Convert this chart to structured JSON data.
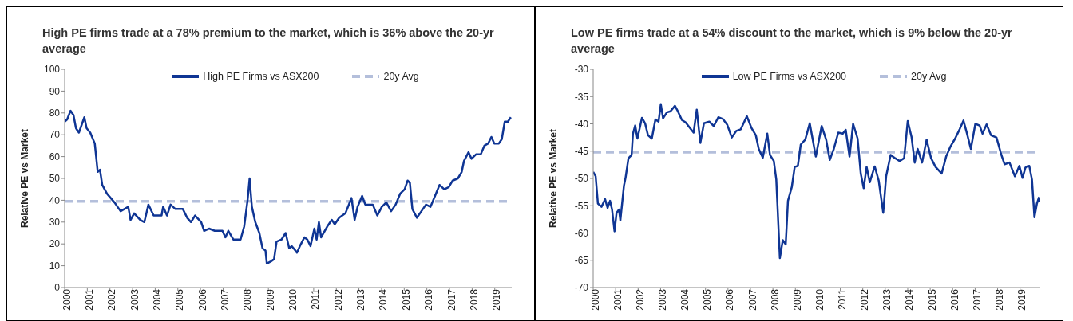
{
  "chart_data": [
    {
      "type": "line",
      "title": "High PE firms trade at a 78% premium to the market, which is 36% above the 20-yr average",
      "ylabel": "Relative PE vs Market",
      "xlim": [
        2000,
        2019.75
      ],
      "xticks": [
        2000,
        2001,
        2002,
        2003,
        2004,
        2005,
        2006,
        2007,
        2008,
        2009,
        2010,
        2011,
        2012,
        2013,
        2014,
        2015,
        2016,
        2017,
        2018,
        2019
      ],
      "ylim": [
        0,
        100
      ],
      "yticks": [
        0,
        10,
        20,
        30,
        40,
        50,
        60,
        70,
        80,
        90,
        100
      ],
      "grid": false,
      "legend": "top",
      "marker": "none",
      "line_style": "solid",
      "x": [
        2000,
        2000.11,
        2000.26,
        2000.39,
        2000.5,
        2000.63,
        2000.87,
        2000.97,
        2001.13,
        2001.33,
        2001.46,
        2001.56,
        2001.66,
        2001.87,
        2002.2,
        2002.47,
        2002.81,
        2002.91,
        2003.07,
        2003.34,
        2003.52,
        2003.7,
        2003.93,
        2004.28,
        2004.35,
        2004.52,
        2004.68,
        2004.89,
        2005.22,
        2005.41,
        2005.58,
        2005.76,
        2006.03,
        2006.16,
        2006.38,
        2006.63,
        2006.97,
        2007.1,
        2007.23,
        2007.45,
        2007.77,
        2007.93,
        2008.08,
        2008.17,
        2008.27,
        2008.42,
        2008.6,
        2008.74,
        2008.87,
        2008.93,
        2009.11,
        2009.25,
        2009.36,
        2009.58,
        2009.76,
        2009.92,
        2010.03,
        2010.19,
        2010.26,
        2010.39,
        2010.59,
        2010.72,
        2010.86,
        2011.03,
        2011.13,
        2011.23,
        2011.33,
        2011.6,
        2011.8,
        2011.93,
        2012.13,
        2012.4,
        2012.67,
        2012.81,
        2012.94,
        2013.14,
        2013.28,
        2013.61,
        2013.81,
        2014.01,
        2014.21,
        2014.42,
        2014.62,
        2014.82,
        2015.02,
        2015.15,
        2015.25,
        2015.36,
        2015.56,
        2015.76,
        2015.96,
        2016.16,
        2016.36,
        2016.56,
        2016.77,
        2016.97,
        2017.14,
        2017.37,
        2017.54,
        2017.64,
        2017.84,
        2017.97,
        2018.17,
        2018.38,
        2018.54,
        2018.71,
        2018.85,
        2018.98,
        2019.18,
        2019.31,
        2019.44,
        2019.58,
        2019.71
      ],
      "series": [
        {
          "name": "High PE Firms vs ASX200",
          "color": "#0f3594",
          "values": [
            76,
            77,
            81,
            79,
            73,
            71,
            78,
            73,
            71,
            66,
            53,
            54,
            47,
            43,
            39,
            35,
            37,
            31,
            34,
            31,
            30,
            38,
            33,
            33,
            37,
            33,
            38,
            36,
            36,
            32,
            30,
            33,
            30,
            26,
            27,
            26,
            26,
            23,
            26,
            22,
            22,
            28,
            40,
            50,
            37,
            30,
            25,
            18,
            17,
            11,
            12,
            13,
            21,
            22,
            25,
            18,
            19,
            17,
            16,
            19,
            23,
            22,
            19,
            27,
            22,
            30,
            23,
            28,
            31,
            29,
            32,
            34,
            41,
            31,
            37,
            42,
            38,
            38,
            33,
            37,
            39,
            35,
            38,
            43,
            45,
            49,
            48,
            36,
            32,
            35,
            38,
            37,
            42,
            47,
            45,
            46,
            49,
            50,
            53,
            58,
            62,
            59,
            61,
            61,
            65,
            66,
            69,
            66,
            66,
            68,
            76,
            76,
            78
          ]
        }
      ],
      "ref_lines": [
        {
          "axis": "y",
          "value": 39.5,
          "label": "20y Avg",
          "color": "#b4bfdb",
          "line_style": "dashed"
        }
      ]
    },
    {
      "type": "line",
      "title": "Low PE firms trade at a 54% discount to the market, which is 9% below the 20-yr average",
      "ylabel": "Relative PE vs Market",
      "xlim": [
        2000,
        2019.9
      ],
      "xticks": [
        2000,
        2001,
        2002,
        2003,
        2004,
        2005,
        2006,
        2007,
        2008,
        2009,
        2010,
        2011,
        2012,
        2013,
        2014,
        2015,
        2016,
        2017,
        2018,
        2019
      ],
      "ylim": [
        -70,
        -30
      ],
      "yticks": [
        -70,
        -65,
        -60,
        -55,
        -50,
        -45,
        -40,
        -35,
        -30
      ],
      "grid": false,
      "legend": "top",
      "marker": "none",
      "line_style": "solid",
      "x": [
        2000,
        2000.11,
        2000.21,
        2000.37,
        2000.53,
        2000.64,
        2000.75,
        2000.84,
        2000.95,
        2001.04,
        2001.15,
        2001.21,
        2001.37,
        2001.44,
        2001.57,
        2001.71,
        2001.77,
        2001.87,
        2001.97,
        2002.17,
        2002.31,
        2002.44,
        2002.61,
        2002.77,
        2002.91,
        2003.01,
        2003.11,
        2003.28,
        2003.44,
        2003.64,
        2003.77,
        2003.95,
        2004.11,
        2004.24,
        2004.47,
        2004.61,
        2004.77,
        2004.93,
        2005.17,
        2005.37,
        2005.57,
        2005.77,
        2005.97,
        2006.17,
        2006.37,
        2006.57,
        2006.84,
        2007.04,
        2007.24,
        2007.37,
        2007.55,
        2007.75,
        2007.87,
        2008.04,
        2008.15,
        2008.31,
        2008.44,
        2008.57,
        2008.67,
        2008.84,
        2008.97,
        2009.11,
        2009.24,
        2009.44,
        2009.64,
        2009.91,
        2010.17,
        2010.37,
        2010.53,
        2010.71,
        2010.91,
        2011.11,
        2011.24,
        2011.41,
        2011.57,
        2011.77,
        2011.91,
        2012.04,
        2012.17,
        2012.31,
        2012.53,
        2012.71,
        2012.91,
        2013.04,
        2013.24,
        2013.44,
        2013.64,
        2013.84,
        2014,
        2014.17,
        2014.31,
        2014.44,
        2014.64,
        2014.84,
        2015.04,
        2015.24,
        2015.51,
        2015.71,
        2015.91,
        2016.11,
        2016.31,
        2016.48,
        2016.64,
        2016.81,
        2017.01,
        2017.2,
        2017.33,
        2017.51,
        2017.71,
        2017.95,
        2018.17,
        2018.31,
        2018.53,
        2018.77,
        2018.97,
        2019.11,
        2019.24,
        2019.41,
        2019.53,
        2019.64,
        2019.75,
        2019.84,
        2019.9
      ],
      "series": [
        {
          "name": "Low PE Firms vs ASX200",
          "color": "#0f3594",
          "values": [
            -48.8,
            -49.6,
            -54.6,
            -55.2,
            -53.8,
            -55.4,
            -54.1,
            -55.7,
            -59.7,
            -56.3,
            -55.7,
            -57.7,
            -51.3,
            -49.9,
            -46.3,
            -45.7,
            -41.8,
            -40.3,
            -42.7,
            -38.9,
            -39.9,
            -42.1,
            -42.7,
            -39.2,
            -39.6,
            -36.4,
            -39,
            -37.9,
            -37.7,
            -36.7,
            -37.7,
            -39.3,
            -39.7,
            -40.4,
            -41.6,
            -37.4,
            -43.5,
            -39.9,
            -39.6,
            -40.4,
            -38.8,
            -39.1,
            -40.2,
            -42.5,
            -41.3,
            -41,
            -38.6,
            -40.7,
            -42.1,
            -44.6,
            -46.2,
            -41.8,
            -45.7,
            -46.8,
            -50.2,
            -64.6,
            -61.3,
            -62.1,
            -54.1,
            -51.6,
            -47.9,
            -47.7,
            -43.8,
            -42.9,
            -39.9,
            -46,
            -40.4,
            -42.9,
            -46.6,
            -44.6,
            -41.6,
            -41.8,
            -41.1,
            -46,
            -40,
            -42.7,
            -49.1,
            -51.8,
            -47.9,
            -50.7,
            -47.8,
            -50.4,
            -56.3,
            -49.6,
            -45.7,
            -46.3,
            -46.8,
            -46.3,
            -39.5,
            -42.4,
            -47.1,
            -44.6,
            -47.1,
            -42.9,
            -46.3,
            -47.9,
            -49.1,
            -46,
            -44.1,
            -42.7,
            -41,
            -39.4,
            -41.8,
            -44.6,
            -40,
            -40.3,
            -41.8,
            -40.1,
            -42.1,
            -42.5,
            -45.7,
            -47.4,
            -47.1,
            -49.6,
            -47.7,
            -49.9,
            -48,
            -47.7,
            -50.2,
            -57.1,
            -54.6,
            -53.5,
            -54.3
          ]
        }
      ],
      "ref_lines": [
        {
          "axis": "y",
          "value": -45.2,
          "label": "20y Avg",
          "color": "#b4bfdb",
          "line_style": "dashed"
        }
      ]
    }
  ]
}
